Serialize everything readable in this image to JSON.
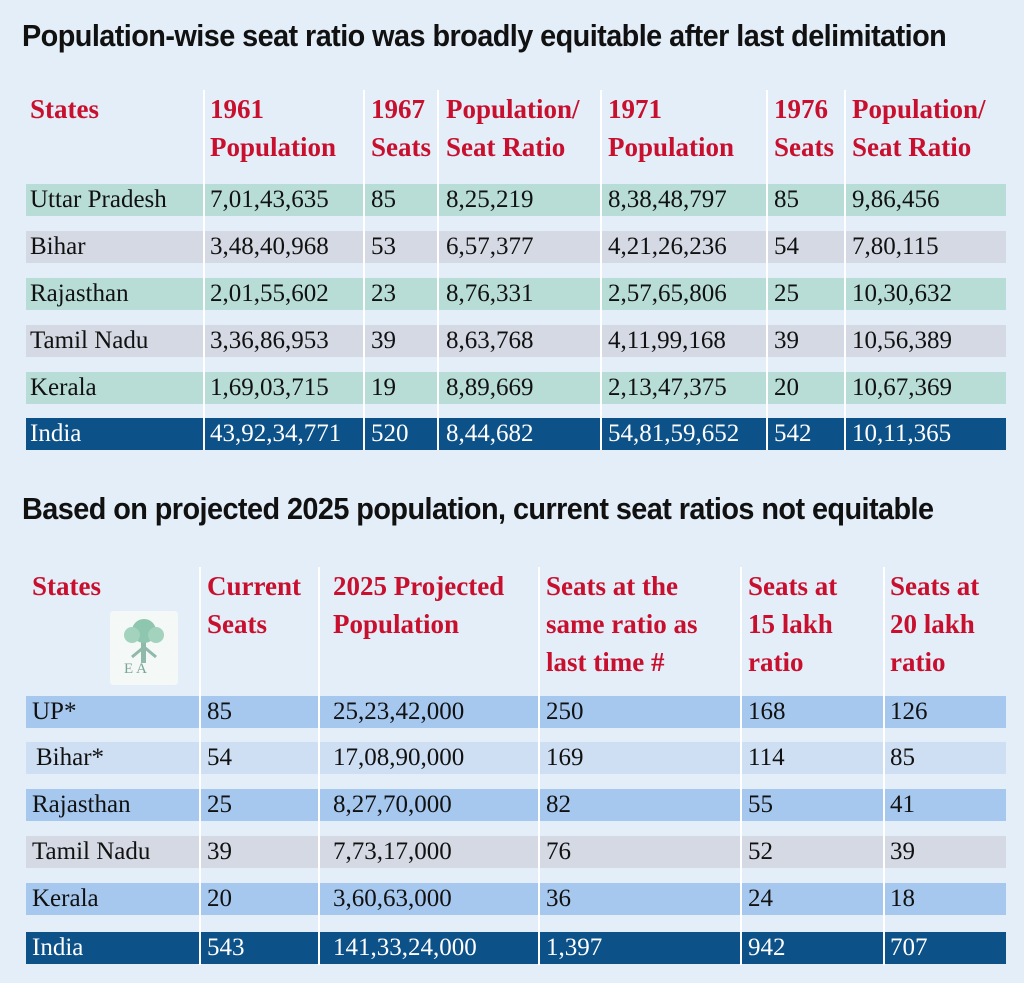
{
  "table1": {
    "title": "Population-wise seat ratio was broadly equitable after last delimitation",
    "headers": [
      [
        "States",
        ""
      ],
      [
        "1961",
        "Population"
      ],
      [
        "1967",
        "Seats"
      ],
      [
        "Population/",
        "Seat Ratio"
      ],
      [
        "1971",
        "Population"
      ],
      [
        "1976",
        "Seats"
      ],
      [
        "Population/",
        "Seat Ratio"
      ]
    ],
    "rows": [
      [
        "Uttar Pradesh",
        "7,01,43,635",
        "85",
        "8,25,219",
        "8,38,48,797",
        "85",
        "9,86,456"
      ],
      [
        "Bihar",
        "3,48,40,968",
        "53",
        "6,57,377",
        "4,21,26,236",
        "54",
        "7,80,115"
      ],
      [
        "Rajasthan",
        "2,01,55,602",
        "23",
        "8,76,331",
        "2,57,65,806",
        "25",
        "10,30,632"
      ],
      [
        "Tamil Nadu",
        "3,36,86,953",
        "39",
        "8,63,768",
        "4,11,99,168",
        "39",
        "10,56,389"
      ],
      [
        "Kerala",
        "1,69,03,715",
        "19",
        "8,89,669",
        "2,13,47,375",
        "20",
        "10,67,369"
      ],
      [
        "India",
        "43,92,34,771",
        "520",
        "8,44,682",
        "54,81,59,652",
        "542",
        "10,11,365"
      ]
    ]
  },
  "table2": {
    "title": "Based on projected 2025 population, current seat ratios not equitable",
    "headers": [
      [
        "States"
      ],
      [
        "Current",
        "Seats"
      ],
      [
        "2025 Projected",
        "Population"
      ],
      [
        "Seats at the",
        "same ratio as",
        "last time #"
      ],
      [
        "Seats at",
        "15 lakh",
        "ratio"
      ],
      [
        "Seats at",
        "20 lakh",
        "ratio"
      ]
    ],
    "rows": [
      [
        "UP*",
        "85",
        "25,23,42,000",
        "250",
        "168",
        "126"
      ],
      [
        "Bihar*",
        "54",
        "17,08,90,000",
        "169",
        "114",
        "85"
      ],
      [
        "Rajasthan",
        "25",
        "8,27,70,000",
        "82",
        "55",
        "41"
      ],
      [
        "Tamil Nadu",
        "39",
        "7,73,17,000",
        "76",
        "52",
        "39"
      ],
      [
        "Kerala",
        "20",
        "3,60,63,000",
        "36",
        "24",
        "18"
      ],
      [
        "India",
        "543",
        "141,33,24,000",
        "1,397",
        "942",
        "707"
      ]
    ]
  },
  "logo": {
    "text": "E A",
    "icon": "tree-logo-icon"
  },
  "colors": {
    "background": "#e3eef9",
    "header_text": "#c8102e",
    "row_teal": "#b8ddd6",
    "row_grey": "#d5d9e4",
    "row_blue": "#a6c8ef",
    "row_blue_light": "#cfdff3",
    "total_row": "#0d5189"
  }
}
